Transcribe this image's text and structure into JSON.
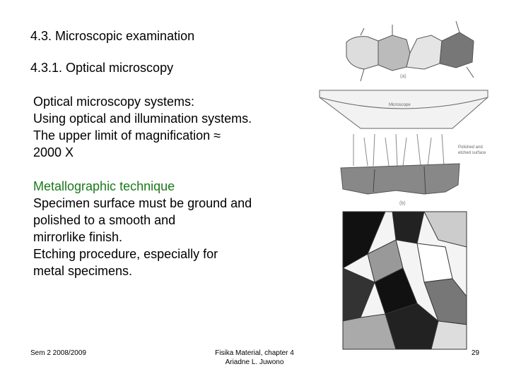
{
  "header": {
    "title": "4.3. Microscopic examination",
    "subtitle": "4.3.1. Optical microscopy"
  },
  "body": {
    "lines": [
      "Optical microscopy systems:",
      "Using optical and illumination systems.",
      "The upper limit of magnification ≈",
      "2000 X"
    ],
    "technique": {
      "heading": "Metallographic technique",
      "lines": [
        "Specimen surface must be ground and",
        "polished to a smooth and",
        "mirrorlike finish.",
        "Etching procedure, especially for",
        "metal specimens."
      ]
    }
  },
  "figure": {
    "labels": [
      "(a)",
      "Microscope",
      "Polished and",
      "etched surface",
      "(b)"
    ]
  },
  "footer": {
    "left": "Sem 2 2008/2009",
    "center": [
      "Fisika Material, chapter 4",
      "Ariadne L. Juwono"
    ],
    "page": "29"
  }
}
